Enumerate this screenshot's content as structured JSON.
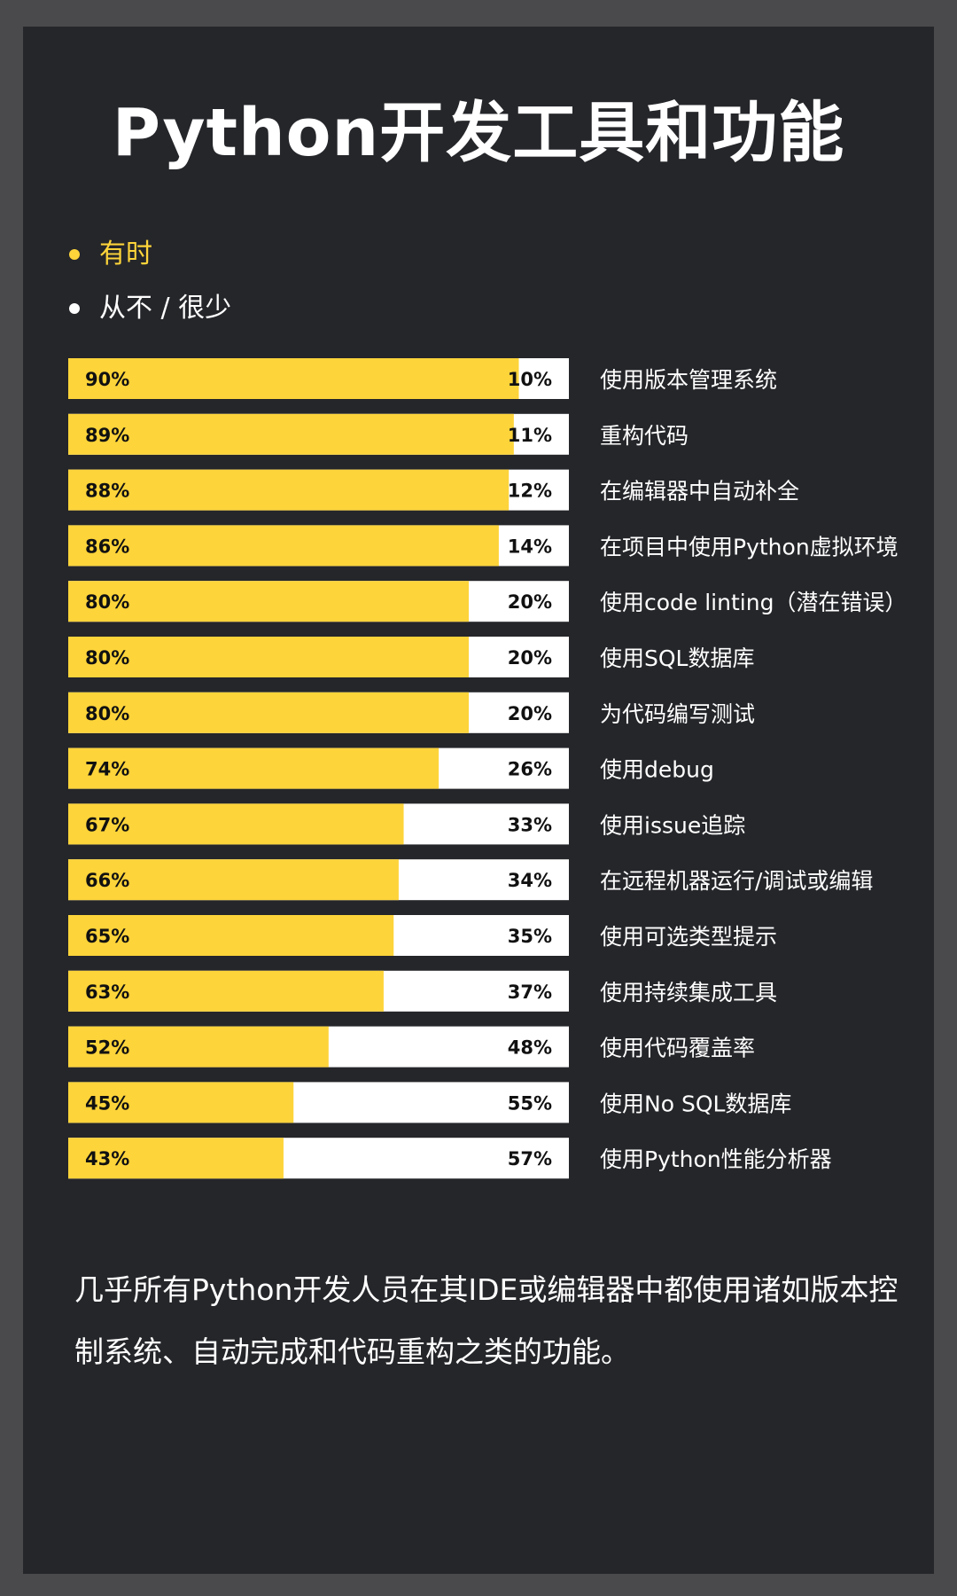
{
  "title": "Python开发工具和功能",
  "legend": [
    {
      "label": "有时",
      "color": "#fdd43a"
    },
    {
      "label": "从不 / 很少",
      "color": "#ffffff"
    }
  ],
  "colors": {
    "sometimes": "#fdd43a",
    "never": "#ffffff",
    "background": "#25262a",
    "frame": "#4a4a4c"
  },
  "chart_data": {
    "type": "bar",
    "orientation": "horizontal-stacked-100",
    "categories": [
      "使用版本管理系统",
      "重构代码",
      "在编辑器中自动补全",
      "在项目中使用Python虚拟环境",
      "使用code linting（潜在错误）",
      "使用SQL数据库",
      "为代码编写测试",
      "使用debug",
      "使用issue追踪",
      "在远程机器运行/调试或编辑",
      "使用可选类型提示",
      "使用持续集成工具",
      "使用代码覆盖率",
      "使用No SQL数据库",
      "使用Python性能分析器"
    ],
    "series": [
      {
        "name": "有时",
        "color": "#fdd43a",
        "values": [
          90,
          89,
          88,
          86,
          80,
          80,
          80,
          74,
          67,
          66,
          65,
          63,
          52,
          45,
          43
        ]
      },
      {
        "name": "从不 / 很少",
        "color": "#ffffff",
        "values": [
          10,
          11,
          12,
          14,
          20,
          20,
          20,
          26,
          33,
          34,
          35,
          37,
          48,
          55,
          57
        ]
      }
    ],
    "value_suffix": "%",
    "xlim": [
      0,
      100
    ]
  },
  "footnote": "几乎所有Python开发人员在其IDE或编辑器中都使用诸如版本控制系统、自动完成和代码重构之类的功能。"
}
